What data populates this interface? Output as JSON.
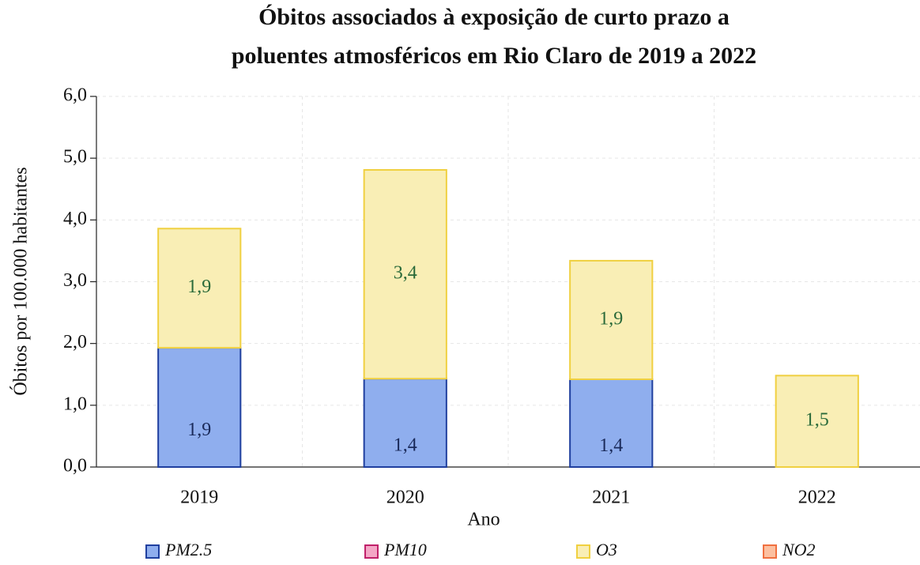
{
  "chart_data": {
    "type": "stacked_bar",
    "title": [
      "Óbitos associados à exposição de curto prazo a",
      "poluentes atmosféricos em Rio Claro de 2019 a 2022"
    ],
    "xlabel": "Ano",
    "ylabel": "Óbitos por 100.000 habitantes",
    "categories": [
      "2019",
      "2020",
      "2021",
      "2022"
    ],
    "series": [
      {
        "name": "PM2.5",
        "color": "#8faeee",
        "edge": "#1f3f9f",
        "label_color": "#1a2a5a",
        "values": [
          1.93,
          1.43,
          1.42,
          0
        ],
        "value_labels": [
          "1,9",
          "1,4",
          "1,4",
          null
        ]
      },
      {
        "name": "PM10",
        "color": "#f4a6c6",
        "edge": "#c0206a",
        "label_color": "#6a1040",
        "values": [
          0,
          0,
          0,
          0
        ]
      },
      {
        "name": "O3",
        "color": "#f9eeb5",
        "edge": "#f0d040",
        "label_color": "#2a6a3a",
        "values": [
          1.93,
          3.38,
          1.92,
          1.48
        ],
        "value_labels": [
          "1,9",
          "3,4",
          "1,9",
          "1,5"
        ]
      },
      {
        "name": "NO2",
        "color": "#fcc0a0",
        "edge": "#f07040",
        "label_color": "#803010",
        "values": [
          0,
          0,
          0,
          0
        ]
      }
    ],
    "ylim": [
      0,
      6
    ],
    "yticks": [
      {
        "value": 0,
        "label": "0,0"
      },
      {
        "value": 1,
        "label": "1,0"
      },
      {
        "value": 2,
        "label": "2,0"
      },
      {
        "value": 3,
        "label": "3,0"
      },
      {
        "value": 4,
        "label": "4,0"
      },
      {
        "value": 5,
        "label": "5,0"
      },
      {
        "value": 6,
        "label": "6,0"
      }
    ],
    "grid": true,
    "legend": "bottom"
  }
}
